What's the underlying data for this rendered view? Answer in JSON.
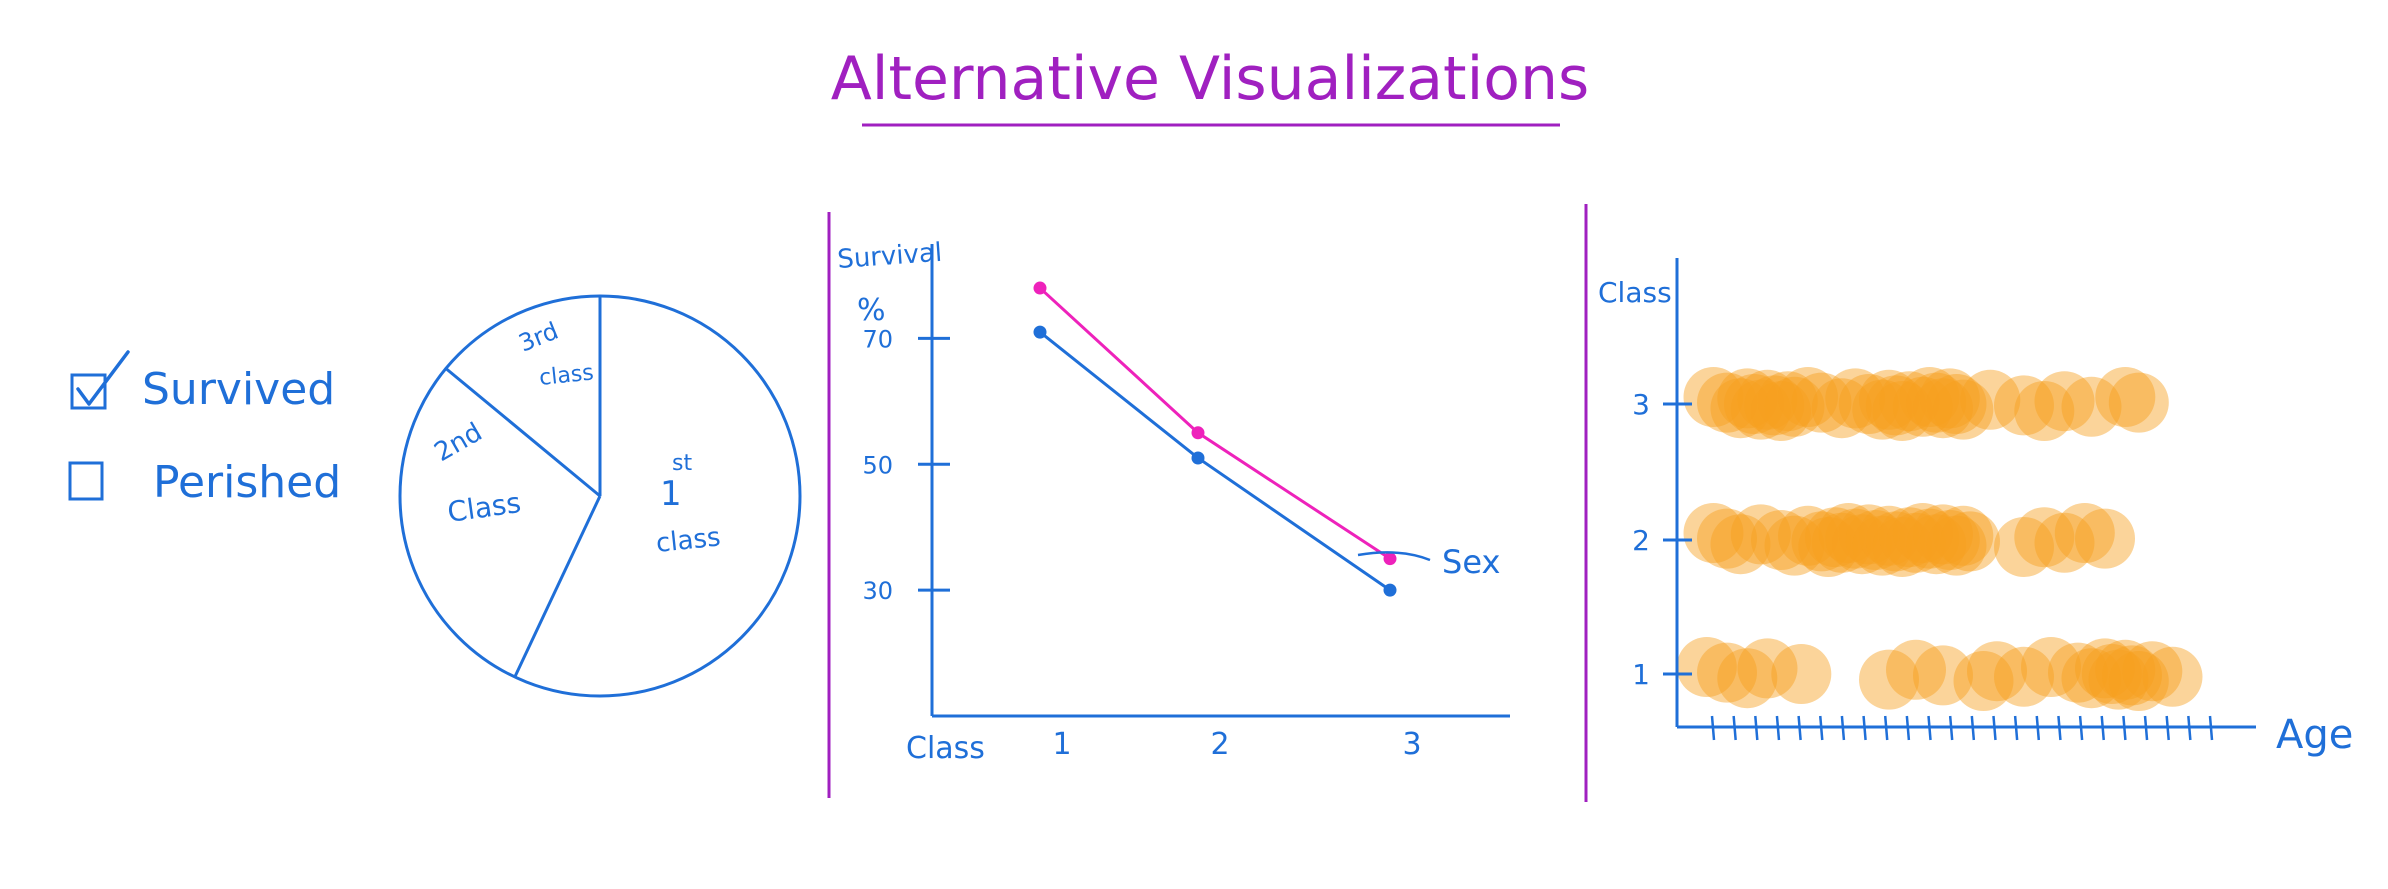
{
  "header": {
    "title": "Alternative Visualizations"
  },
  "colors": {
    "title": "#a020c0",
    "divider": "#a020c0",
    "ink": "#1f6fd8",
    "series_pink": "#ee22bb",
    "series_blue": "#1f6fd8",
    "dots": "#f7a020"
  },
  "filter_legend": {
    "items": [
      {
        "label": "Survived",
        "checked": true,
        "icon": "checkbox-checked-icon"
      },
      {
        "label": "Perished",
        "checked": false,
        "icon": "checkbox-empty-icon"
      }
    ]
  },
  "chart_data": [
    {
      "type": "pie",
      "slices": [
        {
          "label_main": "1",
          "label_sup": "st",
          "label_sub": "class",
          "value": 57
        },
        {
          "label_main": "2nd",
          "label_sub": "Class",
          "value": 29
        },
        {
          "label_main": "3rd",
          "label_sub": "class",
          "value": 14
        }
      ]
    },
    {
      "type": "line",
      "ylabel_line1": "Survival",
      "ylabel_line2": "%",
      "xlabel": "Class",
      "categories": [
        "1",
        "2",
        "3"
      ],
      "yticks": [
        70,
        50,
        30
      ],
      "ylim": [
        10,
        85
      ],
      "annotation": "Sex",
      "series": [
        {
          "values": [
            78,
            55,
            35
          ],
          "color": "#ee22bb"
        },
        {
          "values": [
            71,
            51,
            30
          ],
          "color": "#1f6fd8"
        }
      ]
    },
    {
      "type": "scatter",
      "ylabel": "Class",
      "xlabel": "Age",
      "yticks": [
        "1",
        "2",
        "3"
      ],
      "xlim": [
        0,
        80
      ],
      "x_tick_count": 24,
      "rows": [
        {
          "class": "3",
          "ages": [
            2,
            4,
            6,
            7,
            8,
            9,
            10,
            11,
            12,
            13,
            14,
            16,
            18,
            21,
            23,
            25,
            27,
            28,
            29,
            30,
            31,
            33,
            34,
            35,
            36,
            37,
            38,
            39,
            43,
            48,
            51,
            54,
            58,
            63,
            65
          ]
        },
        {
          "class": "2",
          "ages": [
            2,
            4,
            6,
            9,
            12,
            14,
            16,
            18,
            19,
            20,
            21,
            22,
            23,
            24,
            25,
            26,
            27,
            28,
            29,
            30,
            31,
            32,
            33,
            34,
            35,
            36,
            37,
            38,
            39,
            40,
            48,
            51,
            54,
            57,
            60
          ]
        },
        {
          "class": "1",
          "ages": [
            1,
            4,
            7,
            10,
            15,
            28,
            32,
            36,
            42,
            44,
            48,
            52,
            56,
            58,
            60,
            61,
            62,
            63,
            64,
            65,
            67,
            70
          ]
        }
      ]
    }
  ]
}
